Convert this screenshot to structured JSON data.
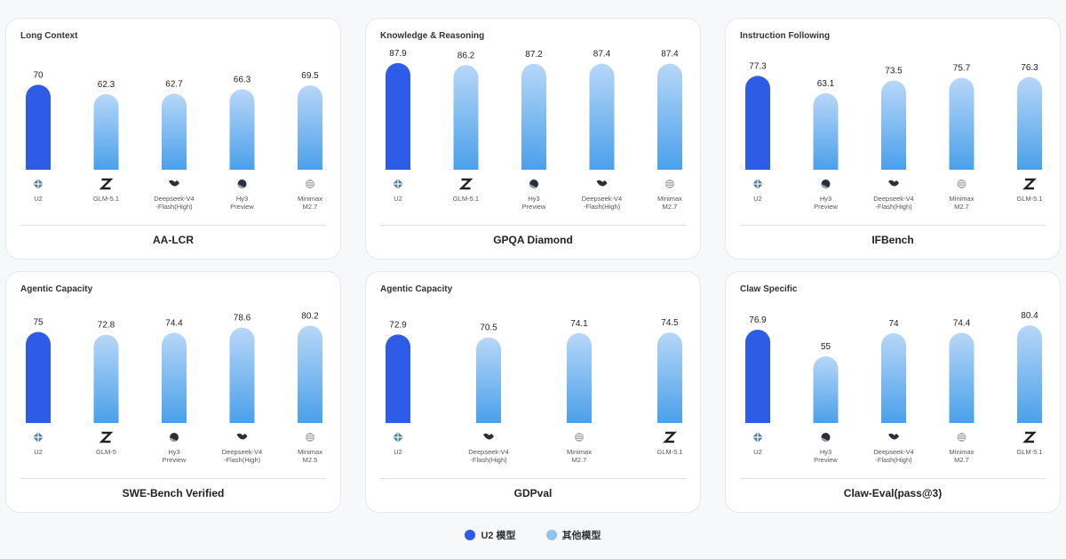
{
  "colors": {
    "primary": "#2f5ce6",
    "other_top": "#b7d7f8",
    "other_bottom": "#4aa0ea",
    "icon": "#4a4f5a"
  },
  "legend": [
    {
      "label": "U2 模型",
      "color": "#2f5ce6"
    },
    {
      "label": "其他模型",
      "color": "#8fc3f2"
    }
  ],
  "chart_data": [
    {
      "type": "bar",
      "category": "Long Context",
      "title": "AA-LCR",
      "models": [
        "U2",
        "GLM-5.1",
        "Deepseek-V4\n-Flash(High)",
        "Hy3\nPreview",
        "Minimax\nM2.7"
      ],
      "icons": [
        "u2-icon",
        "z-icon",
        "whale-icon",
        "hy-icon",
        "minimax-icon"
      ],
      "values": [
        70,
        62.3,
        62.7,
        66.3,
        69.5
      ],
      "labels": [
        "70",
        "62.3",
        "62.7",
        "66.3",
        "69.5"
      ],
      "highlight": [
        true,
        false,
        false,
        false,
        false
      ]
    },
    {
      "type": "bar",
      "category": "Knowledge & Reasoning",
      "title": "GPQA Diamond",
      "models": [
        "U2",
        "GLM-5.1",
        "Hy3\nPreview",
        "Deepseek-V4\n-Flash(High)",
        "Minimax\nM2.7"
      ],
      "icons": [
        "u2-icon",
        "z-icon",
        "hy-icon",
        "whale-icon",
        "minimax-icon"
      ],
      "values": [
        87.9,
        86.2,
        87.2,
        87.4,
        87.4
      ],
      "labels": [
        "87.9",
        "86.2",
        "87.2",
        "87.4",
        "87.4"
      ],
      "highlight": [
        true,
        false,
        false,
        false,
        false
      ]
    },
    {
      "type": "bar",
      "category": "Instruction Following",
      "title": "IFBench",
      "models": [
        "U2",
        "Hy3\nPreview",
        "Deepseek-V4\n-Flash(High)",
        "Minimax\nM2.7",
        "GLM-5.1"
      ],
      "icons": [
        "u2-icon",
        "hy-icon",
        "whale-icon",
        "minimax-icon",
        "z-icon"
      ],
      "values": [
        77.3,
        63.1,
        73.5,
        75.7,
        76.3
      ],
      "labels": [
        "77.3",
        "63.1",
        "73.5",
        "75.7",
        "76.3"
      ],
      "highlight": [
        true,
        false,
        false,
        false,
        false
      ]
    },
    {
      "type": "bar",
      "category": "Agentic Capacity",
      "title": "SWE-Bench Verified",
      "models": [
        "U2",
        "GLM-5",
        "Hy3\nPreview",
        "Deepseek-V4\n-Flash(High)",
        "Minimax\nM2.5"
      ],
      "icons": [
        "u2-icon",
        "z-icon",
        "hy-icon",
        "whale-icon",
        "minimax-icon"
      ],
      "values": [
        75,
        72.8,
        74.4,
        78.6,
        80.2
      ],
      "labels": [
        "75",
        "72.8",
        "74.4",
        "78.6",
        "80.2"
      ],
      "highlight": [
        true,
        false,
        false,
        false,
        false
      ]
    },
    {
      "type": "bar",
      "category": "Agentic Capacity",
      "title": "GDPval",
      "models": [
        "U2",
        "Deepseek-V4\n-Flash(High)",
        "Minimax\nM2.7",
        "GLM-5.1"
      ],
      "icons": [
        "u2-icon",
        "whale-icon",
        "minimax-icon",
        "z-icon"
      ],
      "values": [
        72.9,
        70.5,
        74.1,
        74.5
      ],
      "labels": [
        "72.9",
        "70.5",
        "74.1",
        "74.5"
      ],
      "highlight": [
        true,
        false,
        false,
        false
      ]
    },
    {
      "type": "bar",
      "category": "Claw Specific",
      "title": "Claw-Eval(pass@3)",
      "models": [
        "U2",
        "Hy3\nPreview",
        "Deepseek-V4\n-Flash(High)",
        "Minimax\nM2.7",
        "GLM-5.1"
      ],
      "icons": [
        "u2-icon",
        "hy-icon",
        "whale-icon",
        "minimax-icon",
        "z-icon"
      ],
      "values": [
        76.9,
        55,
        74,
        74.4,
        80.4
      ],
      "labels": [
        "76.9",
        "55",
        "74",
        "74.4",
        "80.4"
      ],
      "highlight": [
        true,
        false,
        false,
        false,
        false
      ]
    }
  ]
}
